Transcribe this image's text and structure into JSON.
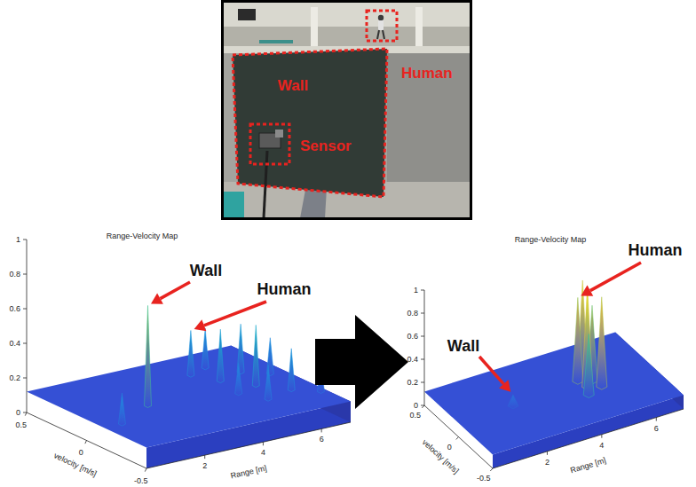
{
  "photo": {
    "wall_label": "Wall",
    "human_label": "Human",
    "sensor_label": "Sensor"
  },
  "chart_data": [
    {
      "type": "surface3d",
      "title": "Range-Velocity Map",
      "x_label": "Range [m]",
      "y_label": "velocity [m/s]",
      "xlim": [
        0,
        7
      ],
      "xticks": [
        2,
        4,
        6
      ],
      "ylim": [
        -0.5,
        0.5
      ],
      "yticks": [
        -0.5,
        0,
        0.5
      ],
      "zlim": [
        0,
        1
      ],
      "zticks": [
        0,
        0.2,
        0.4,
        0.6,
        0.8,
        1
      ],
      "noise_floor": 0.12,
      "objects": [
        {
          "label": "Wall",
          "range": [
            2.1,
            0.6
          ],
          "velocity": [
            0,
            -0.15
          ],
          "amplitude": [
            0.7,
            0.3
          ]
        },
        {
          "label": "Human",
          "range": [
            4.6,
            4.8,
            5.0,
            5.2,
            5.3,
            5.6,
            5.9,
            6.2,
            6.5,
            6.8
          ],
          "velocity": [
            0.25,
            -0.1,
            0.1,
            -0.25,
            0.3,
            -0.05,
            0.15,
            -0.2,
            0.05,
            -0.3
          ],
          "amplitude": [
            0.38,
            0.3,
            0.42,
            0.32,
            0.35,
            0.47,
            0.4,
            0.36,
            0.33,
            0.3
          ]
        }
      ]
    },
    {
      "type": "surface3d",
      "title": "Range-Velocity Map",
      "x_label": "Range [m]",
      "y_label": "velocity [m/s]",
      "xlim": [
        0,
        7
      ],
      "xticks": [
        2,
        4,
        6
      ],
      "ylim": [
        -0.5,
        0.5
      ],
      "yticks": [
        -0.5,
        0,
        0.5
      ],
      "zlim": [
        0,
        1
      ],
      "zticks": [
        0,
        0.2,
        0.4,
        0.6,
        0.8,
        1
      ],
      "noise_floor": 0.12,
      "objects": [
        {
          "label": "Wall",
          "range": [
            2.0
          ],
          "velocity": [
            0
          ],
          "amplitude": [
            0.22
          ]
        },
        {
          "label": "Human",
          "range": [
            4.5,
            4.4,
            4.6,
            4.8,
            4.9,
            5.0,
            5.1
          ],
          "velocity": [
            0.05,
            -0.15,
            -0.05,
            0.1,
            0,
            -0.1,
            0.15
          ],
          "amplitude": [
            0.85,
            0.65,
            1.0,
            0.95,
            0.78,
            0.9,
            0.7
          ]
        }
      ]
    }
  ]
}
